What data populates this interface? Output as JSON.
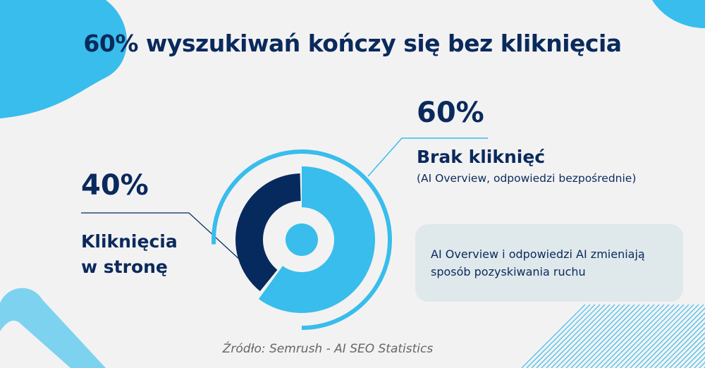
{
  "title": "60% wyszukiwań kończy się bez kliknięcia",
  "chart_data": {
    "type": "pie",
    "variant": "donut",
    "title": "60% wyszukiwań kończy się bez kliknięcia",
    "slices": [
      {
        "label": "Brak kliknięć",
        "value": 60,
        "value_label": "60%",
        "detail": "(AI Overview, odpowiedzi bezpośrednie)",
        "color": "#38bdec"
      },
      {
        "label": "Kliknięcia w stronę",
        "value": 40,
        "value_label": "40%",
        "color": "#062a5e"
      }
    ]
  },
  "labels": {
    "no_click_pct": "60%",
    "no_click_label": "Brak kliknięć",
    "no_click_detail": "(AI Overview, odpowiedzi bezpośrednie)",
    "click_pct": "40%",
    "click_label_line1": "Kliknięcia",
    "click_label_line2": "w stronę"
  },
  "note": "AI Overview i odpowiedzi AI zmieniają sposób pozyskiwania ruchu",
  "source": "Źródło: Semrush - AI SEO Statistics",
  "colors": {
    "accent": "#38bdec",
    "dark": "#062a5e",
    "background": "#f3f2f3",
    "note_bg": "#dfe8eb"
  }
}
